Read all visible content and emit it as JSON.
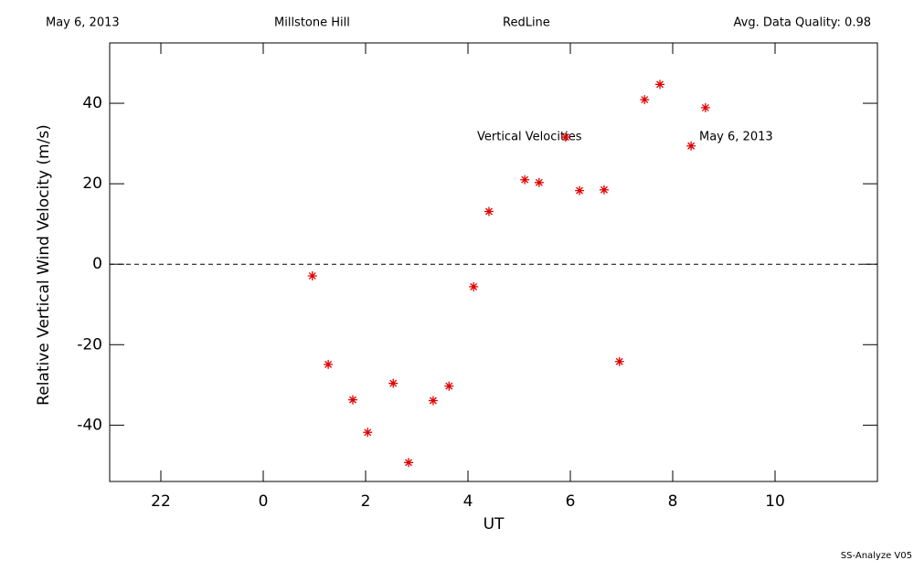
{
  "chart_data": {
    "type": "scatter",
    "header": [
      "May 6, 2013",
      "Millstone Hill",
      "RedLine",
      "Avg. Data Quality: 0.98"
    ],
    "xlabel": "UT",
    "ylabel": "Relative Vertical Wind Velocity (m/s)",
    "annotations": [
      "Vertical Velocities",
      "May 6, 2013"
    ],
    "footer": "SS-Analyze V05",
    "color": "#e00000",
    "x": [
      0.96,
      1.27,
      1.75,
      2.04,
      2.54,
      2.84,
      3.32,
      3.63,
      4.11,
      4.41,
      5.11,
      5.39,
      5.91,
      6.18,
      6.66,
      6.96,
      7.45,
      7.75,
      8.36,
      8.64
    ],
    "values": [
      -2.9,
      -24.9,
      -33.7,
      -41.8,
      -29.6,
      -49.3,
      -33.9,
      -30.3,
      -5.6,
      13.1,
      21.0,
      20.3,
      31.6,
      18.3,
      18.5,
      -24.2,
      40.9,
      44.7,
      29.4,
      38.9
    ],
    "xlim": [
      -3,
      12
    ],
    "xticks": [
      {
        "value": -2,
        "label": "22"
      },
      0,
      2,
      4,
      6,
      8,
      10
    ],
    "ylim": [
      -54,
      55
    ],
    "yticks": [
      -40,
      -20,
      0,
      20,
      40
    ]
  }
}
